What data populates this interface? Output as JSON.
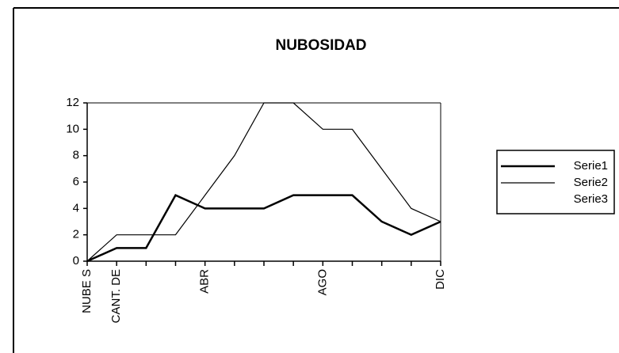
{
  "chart_data": {
    "type": "line",
    "title": "NUBOSIDAD",
    "categories": [
      "NUBE S",
      "CANT. DE",
      null,
      null,
      "ABR",
      null,
      null,
      null,
      "AGO",
      null,
      null,
      null,
      "DIC"
    ],
    "series": [
      {
        "name": "Serie1",
        "color": "#000000",
        "values": [
          0,
          1,
          1,
          5,
          4,
          4,
          4,
          5,
          5,
          5,
          3,
          2,
          3
        ]
      },
      {
        "name": "Serie2",
        "color": "#000000",
        "values": [
          0,
          2,
          2,
          2,
          5,
          8,
          12,
          12,
          10,
          10,
          7,
          4,
          3
        ]
      },
      {
        "name": "Serie3",
        "values": [
          null,
          null,
          null,
          null,
          null,
          null,
          null,
          null,
          null,
          null,
          null,
          null,
          null
        ]
      }
    ],
    "ylim": [
      0,
      12
    ],
    "yticks": [
      0,
      2,
      4,
      6,
      8,
      10,
      12
    ],
    "legend": "right"
  }
}
